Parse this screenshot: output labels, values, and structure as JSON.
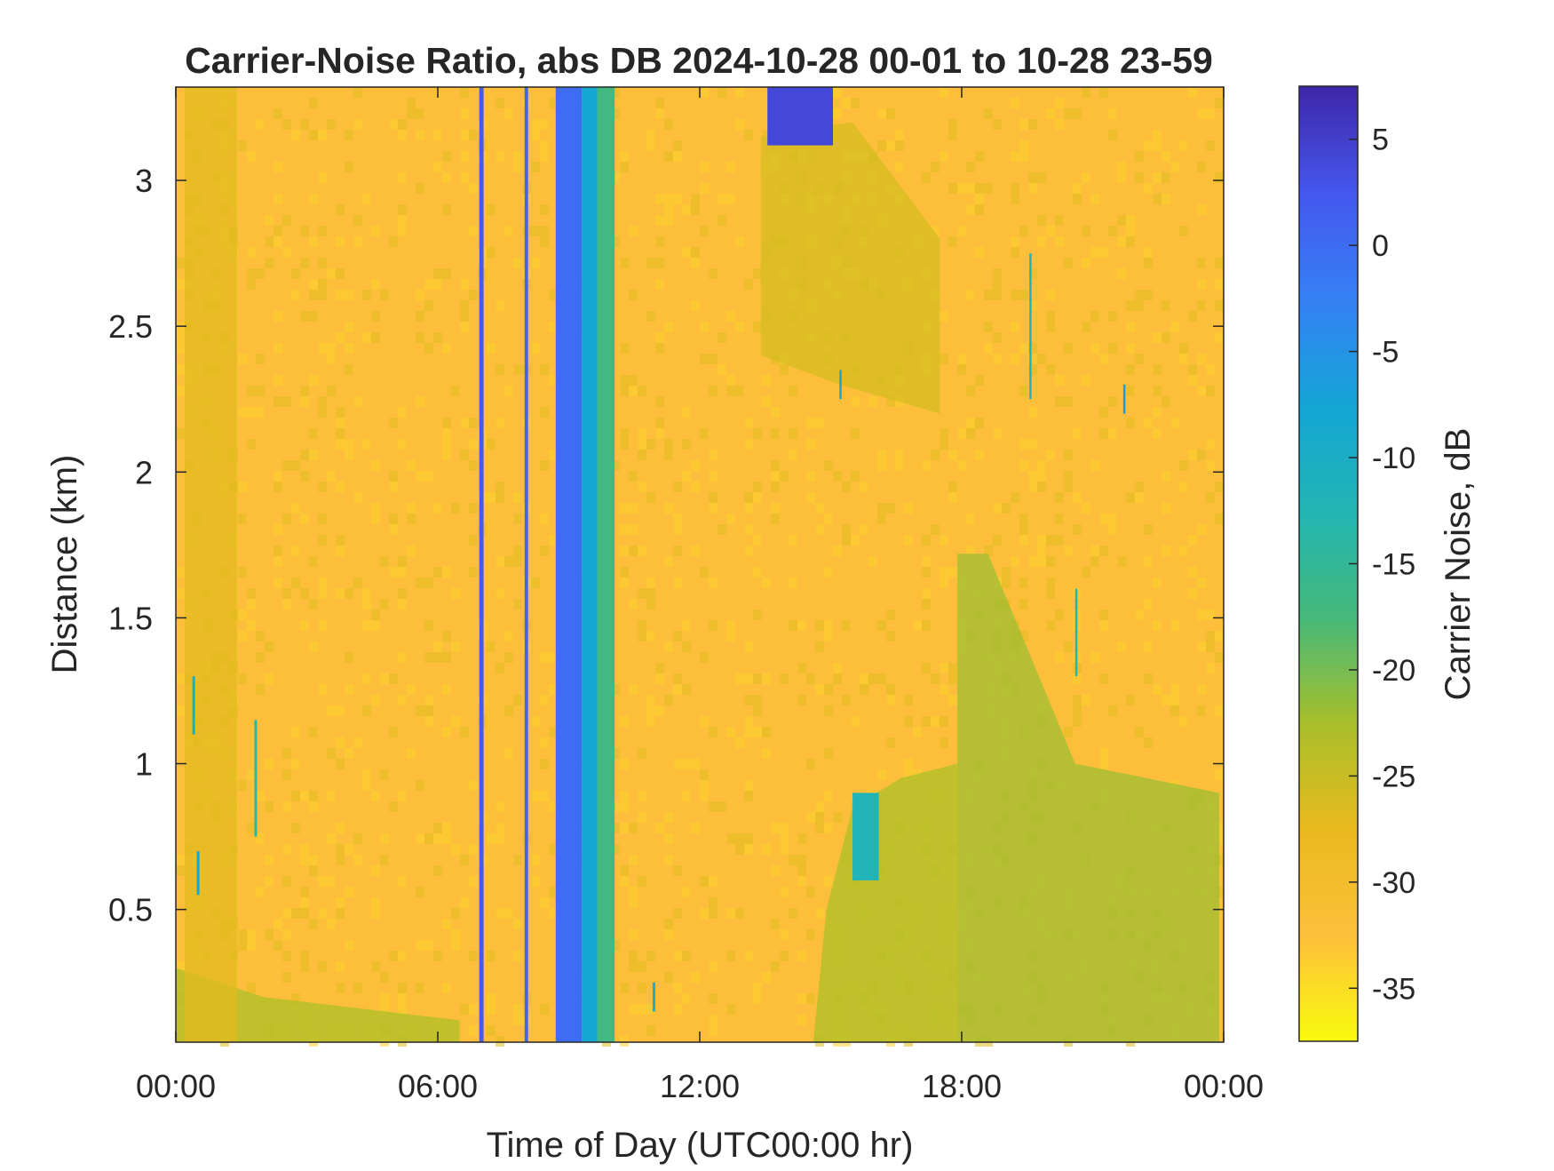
{
  "chart_data": {
    "type": "heatmap",
    "title": "Carrier-Noise Ratio, abs DB 2024-10-28 00-01 to 10-28 23-59",
    "xlabel": "Time of Day (UTC00:00 hr)",
    "ylabel": "Distance (km)",
    "xlim_hours": [
      0,
      24
    ],
    "ylim_km": [
      0.045,
      3.32
    ],
    "x_ticks": [
      {
        "value": 0,
        "label": "00:00"
      },
      {
        "value": 6,
        "label": "06:00"
      },
      {
        "value": 12,
        "label": "12:00"
      },
      {
        "value": 18,
        "label": "18:00"
      },
      {
        "value": 24,
        "label": "00:00"
      }
    ],
    "y_ticks": [
      {
        "value": 0.5,
        "label": "0.5"
      },
      {
        "value": 1,
        "label": "1"
      },
      {
        "value": 1.5,
        "label": "1.5"
      },
      {
        "value": 2,
        "label": "2"
      },
      {
        "value": 2.5,
        "label": "2.5"
      },
      {
        "value": 3,
        "label": "3"
      }
    ],
    "grid": false,
    "colorbar": {
      "label": "Carrier Noise, dB",
      "clim": [
        -37.5,
        7.5
      ],
      "colormap": "parula-reversed",
      "colors_low_to_high": [
        "#f9fb0e",
        "#fdbf3b",
        "#e9ba1e",
        "#a7bf2b",
        "#45b97a",
        "#21b5b3",
        "#14a5d6",
        "#3680f5",
        "#4557ee",
        "#3e26a8"
      ],
      "ticks": [
        {
          "value": 5,
          "label": "5"
        },
        {
          "value": 0,
          "label": "0"
        },
        {
          "value": -5,
          "label": "-5"
        },
        {
          "value": -10,
          "label": "-10"
        },
        {
          "value": -15,
          "label": "-15"
        },
        {
          "value": -20,
          "label": "-20"
        },
        {
          "value": -25,
          "label": "-25"
        },
        {
          "value": -30,
          "label": "-30"
        },
        {
          "value": -35,
          "label": "-35"
        }
      ]
    },
    "background_level_db": -30,
    "features": [
      {
        "type": "column",
        "x_start": 6.95,
        "x_end": 7.05,
        "y_min": 0.045,
        "y_max": 3.32,
        "db": 2
      },
      {
        "type": "column",
        "x_start": 7.99,
        "x_end": 8.07,
        "y_min": 0.045,
        "y_max": 3.32,
        "db": 1
      },
      {
        "type": "column",
        "x_start": 8.7,
        "x_end": 9.3,
        "y_min": 0.045,
        "y_max": 3.32,
        "db": 0
      },
      {
        "type": "column",
        "x_start": 9.3,
        "x_end": 9.65,
        "y_min": 0.045,
        "y_max": 3.32,
        "db": -8
      },
      {
        "type": "column",
        "x_start": 9.65,
        "x_end": 10.05,
        "y_min": 0.045,
        "y_max": 3.32,
        "db": -17
      },
      {
        "type": "patch",
        "x_start": 13.55,
        "x_end": 15.05,
        "y_min": 3.12,
        "y_max": 3.32,
        "db": 4
      },
      {
        "type": "patch",
        "x_start": 15.5,
        "x_end": 16.1,
        "y_min": 0.6,
        "y_max": 0.9,
        "db": -12
      },
      {
        "type": "region",
        "polygon": [
          [
            17.9,
            0.045
          ],
          [
            17.9,
            1.72
          ],
          [
            18.6,
            1.72
          ],
          [
            20.6,
            1.0
          ],
          [
            23.9,
            0.9
          ],
          [
            23.9,
            0.045
          ]
        ],
        "db": -22
      },
      {
        "type": "region",
        "polygon": [
          [
            14.6,
            0.045
          ],
          [
            14.9,
            0.5
          ],
          [
            15.5,
            0.85
          ],
          [
            16.6,
            0.95
          ],
          [
            17.9,
            1.0
          ],
          [
            17.9,
            0.045
          ]
        ],
        "db": -23
      },
      {
        "type": "region",
        "polygon": [
          [
            13.4,
            2.4
          ],
          [
            13.4,
            3.15
          ],
          [
            15.5,
            3.2
          ],
          [
            17.5,
            2.8
          ],
          [
            17.5,
            2.2
          ],
          [
            15.2,
            2.3
          ]
        ],
        "db": -26
      },
      {
        "type": "region",
        "polygon": [
          [
            0,
            0.045
          ],
          [
            0,
            0.3
          ],
          [
            2,
            0.2
          ],
          [
            6.5,
            0.12
          ],
          [
            6.5,
            0.045
          ]
        ],
        "db": -23
      },
      {
        "type": "region",
        "polygon": [
          [
            0.2,
            0.045
          ],
          [
            0.2,
            3.32
          ],
          [
            1.4,
            3.32
          ],
          [
            1.4,
            0.045
          ]
        ],
        "db": -27
      },
      {
        "type": "column",
        "x_start": 0.38,
        "x_end": 0.44,
        "y_min": 1.1,
        "y_max": 1.3,
        "db": -10
      },
      {
        "type": "column",
        "x_start": 0.48,
        "x_end": 0.54,
        "y_min": 0.55,
        "y_max": 0.7,
        "db": -8
      },
      {
        "type": "column",
        "x_start": 1.8,
        "x_end": 1.86,
        "y_min": 0.75,
        "y_max": 1.15,
        "db": -14
      },
      {
        "type": "column",
        "x_start": 15.2,
        "x_end": 15.25,
        "y_min": 2.25,
        "y_max": 2.35,
        "db": -8
      },
      {
        "type": "column",
        "x_start": 19.55,
        "x_end": 19.6,
        "y_min": 2.25,
        "y_max": 2.75,
        "db": -12
      },
      {
        "type": "column",
        "x_start": 21.7,
        "x_end": 21.75,
        "y_min": 2.2,
        "y_max": 2.3,
        "db": -6
      },
      {
        "type": "column",
        "x_start": 20.6,
        "x_end": 20.65,
        "y_min": 1.3,
        "y_max": 1.6,
        "db": -13
      },
      {
        "type": "column",
        "x_start": 10.92,
        "x_end": 10.98,
        "y_min": 0.15,
        "y_max": 0.25,
        "db": -10
      }
    ]
  }
}
